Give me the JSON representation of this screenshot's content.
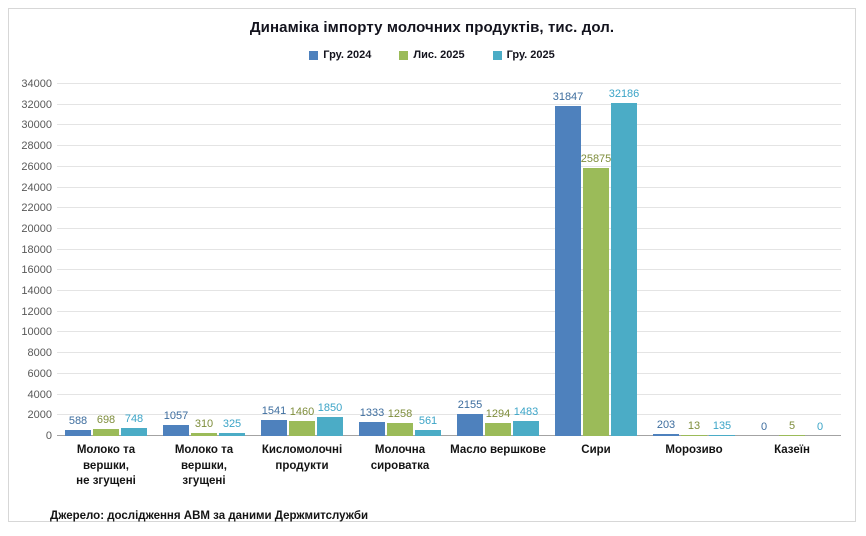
{
  "chart": {
    "title": "Динаміка імпорту молочних продуктів, тис. дол.",
    "source_note": "Джерело: дослідження  АВМ за даними  Держмитслужби"
  },
  "chart_data": {
    "type": "bar",
    "title": "Динаміка імпорту молочних продуктів, тис. дол.",
    "categories": [
      "Молоко та вершки,\nне згущені",
      "Молоко та вершки,\nзгущені",
      "Кисломолочні\nпродукти",
      "Молочна\nсироватка",
      "Масло вершкове",
      "Сири",
      "Морозиво",
      "Казеїн"
    ],
    "series": [
      {
        "name": "Гру. 2024",
        "color": "#4E81BD",
        "label_color": "#3D6D9E",
        "values": [
          588,
          1057,
          1541,
          1333,
          2155,
          31847,
          203,
          0
        ]
      },
      {
        "name": "Лис. 2025",
        "color": "#9BBB59",
        "label_color": "#7E8D3B",
        "values": [
          698,
          310,
          1460,
          1258,
          1294,
          25875,
          13,
          5
        ]
      },
      {
        "name": "Гру. 2025",
        "color": "#4BACC6",
        "label_color": "#3BA4C7",
        "values": [
          748,
          325,
          1850,
          561,
          1483,
          32186,
          135,
          0
        ]
      }
    ],
    "xlabel": "",
    "ylabel": "",
    "ylim": [
      0,
      34000
    ],
    "ytick_step": 2000,
    "yticks": [
      0,
      2000,
      4000,
      6000,
      8000,
      10000,
      12000,
      14000,
      16000,
      18000,
      20000,
      22000,
      24000,
      26000,
      28000,
      30000,
      32000,
      34000
    ],
    "grid": true,
    "legend_position": "top",
    "data_labels": true
  }
}
